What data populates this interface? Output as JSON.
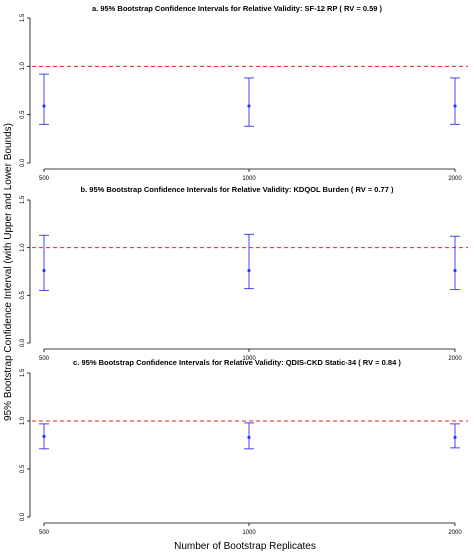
{
  "chart_data": [
    {
      "type": "scatter",
      "title": "a. 95% Bootstrap Confidence Intervals for Relative Validity: SF-12 RP ( RV = 0.59 )",
      "categories": [
        "500",
        "1000",
        "2000"
      ],
      "values": [
        0.59,
        0.59,
        0.59
      ],
      "lower": [
        0.4,
        0.38,
        0.4
      ],
      "upper": [
        0.92,
        0.88,
        0.88
      ],
      "reference_line": 1.0,
      "ylim": [
        0.0,
        1.5
      ],
      "yticks": [
        "0.0",
        "0.5",
        "1.0",
        "1.5"
      ]
    },
    {
      "type": "scatter",
      "title": "b. 95% Bootstrap Confidence Intervals for Relative Validity: KDQOL Burden ( RV = 0.77 )",
      "categories": [
        "500",
        "1000",
        "2000"
      ],
      "values": [
        0.76,
        0.76,
        0.76
      ],
      "lower": [
        0.55,
        0.57,
        0.56
      ],
      "upper": [
        1.13,
        1.14,
        1.12
      ],
      "reference_line": 1.0,
      "ylim": [
        0.0,
        1.5
      ],
      "yticks": [
        "0.0",
        "0.5",
        "1.0",
        "1.5"
      ]
    },
    {
      "type": "scatter",
      "title": "c. 95% Bootstrap Confidence Intervals for Relative Validity: QDIS-CKD Static-34 ( RV = 0.84 )",
      "categories": [
        "500",
        "1000",
        "2000"
      ],
      "values": [
        0.84,
        0.83,
        0.83
      ],
      "lower": [
        0.71,
        0.71,
        0.72
      ],
      "upper": [
        0.97,
        0.98,
        0.97
      ],
      "reference_line": 1.0,
      "ylim": [
        0.0,
        1.5
      ],
      "yticks": [
        "0.0",
        "0.5",
        "1.0",
        "1.5"
      ]
    }
  ],
  "xlabel": "Number of Bootstrap Replicates",
  "ylabel": "95% Bootstrap Confidence Interval (with Upper and Lower Bounds)",
  "colors": {
    "interval": "#3333ee",
    "reference": "#ee2222",
    "axis": "#000000"
  }
}
